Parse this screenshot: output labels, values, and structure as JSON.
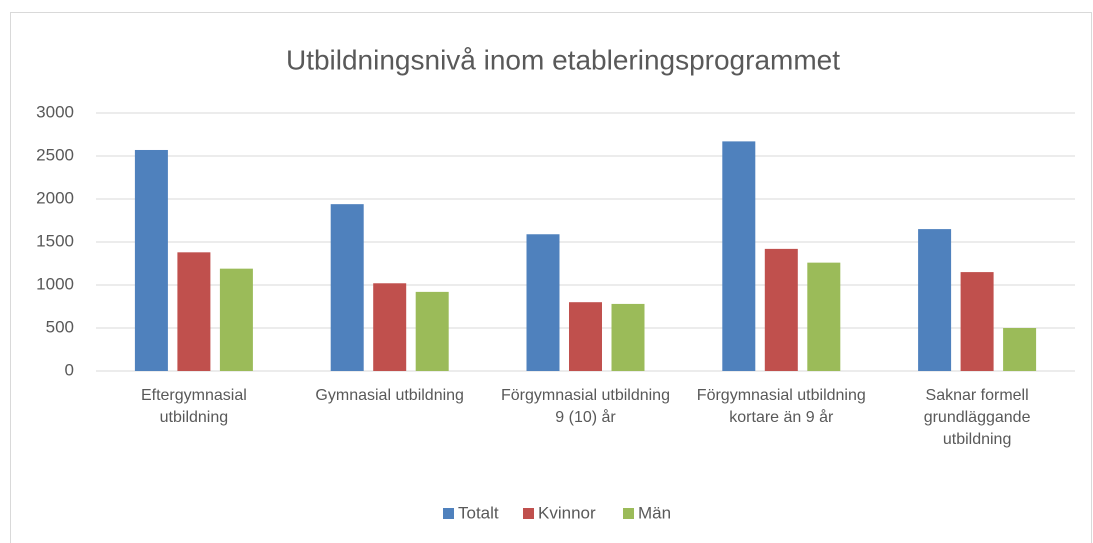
{
  "chart_data": {
    "type": "bar",
    "title": "Utbildningsnivå inom etableringsprogrammet",
    "categories": [
      "Eftergymnasial utbildning",
      "Gymnasial utbildning",
      "Förgymnasial utbildning 9 (10) år",
      "Förgymnasial utbildning kortare än 9 år",
      "Saknar formell grundläggande utbildning"
    ],
    "series": [
      {
        "name": "Totalt",
        "color": "#4f81bd",
        "values": [
          2570,
          1940,
          1590,
          2670,
          1650
        ]
      },
      {
        "name": "Kvinnor",
        "color": "#c0504d",
        "values": [
          1380,
          1020,
          800,
          1420,
          1150
        ]
      },
      {
        "name": "Män",
        "color": "#9bbb59",
        "values": [
          1190,
          920,
          780,
          1260,
          500
        ]
      }
    ],
    "ylim": [
      0,
      3000
    ],
    "yticks": [
      0,
      500,
      1000,
      1500,
      2000,
      2500,
      3000
    ],
    "grid": true,
    "legend": "bottom"
  }
}
